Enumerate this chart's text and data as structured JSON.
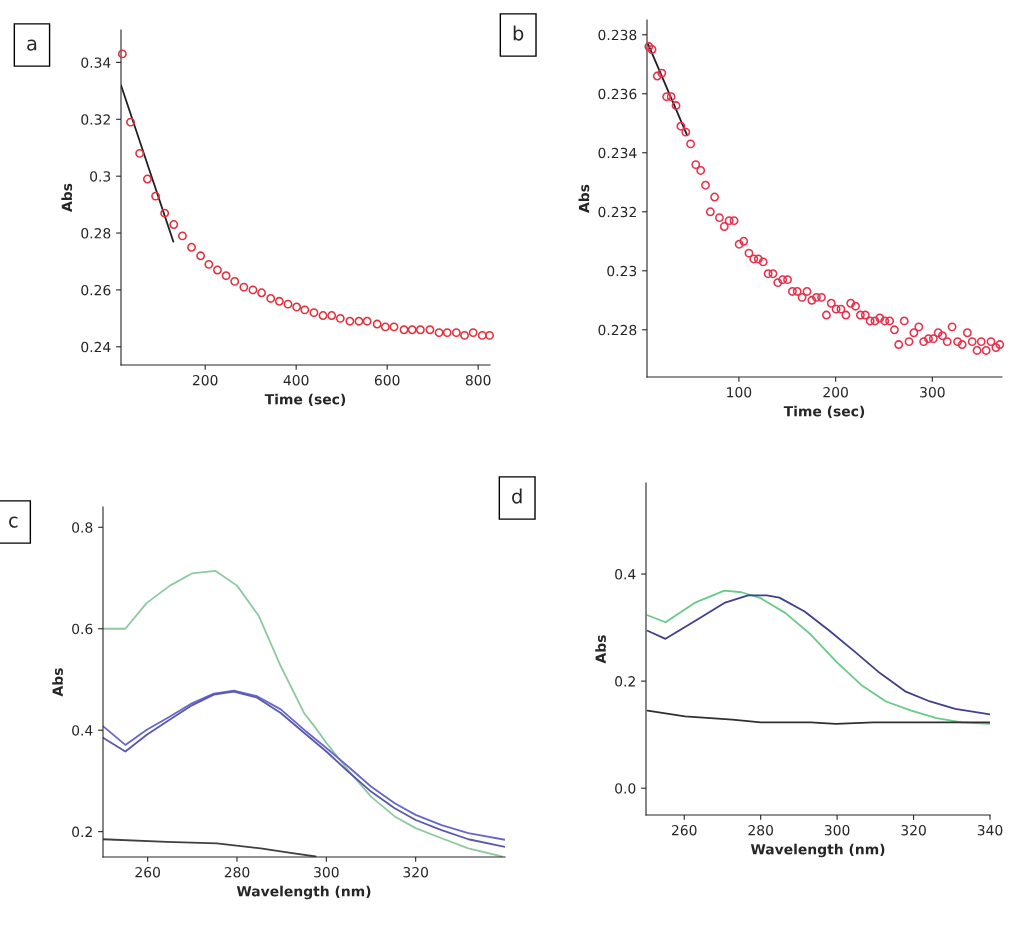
{
  "chart_data": [
    {
      "type": "scatter",
      "xlabel": "Time (sec)",
      "ylabel": "Abs",
      "annotations": [
        "a"
      ],
      "xlim": [
        15,
        826
      ],
      "ylim": [
        0.2336,
        0.3514
      ],
      "xticks": [
        200,
        400,
        600,
        800
      ],
      "yticks": [
        0.24,
        0.26,
        0.28,
        0.3,
        0.32,
        0.34
      ],
      "series": [
        {
          "type": "scatter",
          "marker": "circle",
          "color": "#e0303a",
          "x": [
            18,
            36,
            56,
            73,
            91,
            111,
            131,
            150,
            170,
            190,
            208,
            227,
            246,
            265,
            285,
            305,
            324,
            344,
            363,
            382,
            401,
            419,
            439,
            459,
            478,
            497,
            518,
            538,
            556,
            578,
            596,
            615,
            637,
            655,
            673,
            694,
            714,
            732,
            752,
            770,
            789,
            809,
            825
          ],
          "values": [
            0.343,
            0.319,
            0.308,
            0.299,
            0.293,
            0.287,
            0.283,
            0.279,
            0.275,
            0.272,
            0.269,
            0.267,
            0.265,
            0.263,
            0.261,
            0.26,
            0.259,
            0.257,
            0.256,
            0.255,
            0.254,
            0.253,
            0.252,
            0.251,
            0.251,
            0.25,
            0.249,
            0.249,
            0.249,
            0.248,
            0.247,
            0.247,
            0.246,
            0.246,
            0.246,
            0.246,
            0.245,
            0.245,
            0.245,
            0.244,
            0.245,
            0.244,
            0.244
          ]
        },
        {
          "type": "line",
          "color": "#202020",
          "x": [
            15,
            130
          ],
          "values": [
            0.332,
            0.277
          ]
        }
      ]
    },
    {
      "type": "scatter",
      "xlabel": "Time (sec)",
      "ylabel": "Abs",
      "annotations": [
        "b"
      ],
      "xlim": [
        5,
        372
      ],
      "ylim": [
        0.2264,
        0.2385
      ],
      "xticks": [
        100,
        200,
        300
      ],
      "yticks": [
        0.228,
        0.23,
        0.232,
        0.234,
        0.236,
        0.238
      ],
      "series": [
        {
          "type": "scatter",
          "marker": "circle",
          "color": "#e8304a",
          "x": [
            6.9,
            10.2,
            15.6,
            20.3,
            25.3,
            30.0,
            35.0,
            40.0,
            45.1,
            50.1,
            55.4,
            60.5,
            65.5,
            70.5,
            74.9,
            79.9,
            84.9,
            89.9,
            95.0,
            100.3,
            105.0,
            110.4,
            115.4,
            120.1,
            125.1,
            130.2,
            135.2,
            140.2,
            145.2,
            150.3,
            155.3,
            160.3,
            165.3,
            170.4,
            175.4,
            180.1,
            185.4,
            190.5,
            195.5,
            200.5,
            205.5,
            210.6,
            215.6,
            220.6,
            225.6,
            230.7,
            235.7,
            240.7,
            245.7,
            250.8,
            255.8,
            260.8,
            265.2,
            270.9,
            275.9,
            280.9,
            286.0,
            291.0,
            296.0,
            301.0,
            306.0,
            310.4,
            315.4,
            320.4,
            326.1,
            330.8,
            336.2,
            341.2,
            346.2,
            350.6,
            355.6,
            360.6,
            365.7,
            369.7
          ],
          "values": [
            0.2376,
            0.2375,
            0.2366,
            0.2367,
            0.2359,
            0.2359,
            0.2356,
            0.2349,
            0.2347,
            0.2343,
            0.2336,
            0.2334,
            0.2329,
            0.232,
            0.2325,
            0.2318,
            0.2315,
            0.2317,
            0.2317,
            0.2309,
            0.231,
            0.2306,
            0.2304,
            0.2304,
            0.2303,
            0.2299,
            0.2299,
            0.2296,
            0.2297,
            0.2297,
            0.2293,
            0.2293,
            0.2291,
            0.2293,
            0.229,
            0.2291,
            0.2291,
            0.2285,
            0.2289,
            0.2287,
            0.2287,
            0.2285,
            0.2289,
            0.2288,
            0.2285,
            0.2285,
            0.2283,
            0.2283,
            0.2284,
            0.2283,
            0.2283,
            0.228,
            0.2275,
            0.2283,
            0.2276,
            0.2279,
            0.2281,
            0.2276,
            0.2277,
            0.2277,
            0.2279,
            0.2278,
            0.2276,
            0.2281,
            0.2276,
            0.2275,
            0.2279,
            0.2276,
            0.2273,
            0.2276,
            0.2273,
            0.2276,
            0.2274,
            0.2275
          ]
        },
        {
          "type": "line",
          "color": "#202020",
          "x": [
            5.9,
            46.4
          ],
          "values": [
            0.2377,
            0.2346
          ]
        }
      ]
    },
    {
      "type": "line",
      "xlabel": "Wavelength (nm)",
      "ylabel": "Abs",
      "annotations": [
        "c"
      ],
      "xlim": [
        250,
        340
      ],
      "ylim": [
        0.15,
        0.84
      ],
      "xticks": [
        260,
        280,
        300,
        320
      ],
      "yticks": [
        0.2,
        0.4,
        0.6,
        0.8
      ],
      "series": [
        {
          "color": "#8ec9a0",
          "x": [
            250,
            255,
            259.8,
            265,
            269.9,
            275.2,
            280,
            284.9,
            289.8,
            295,
            297.3,
            300,
            304.8,
            310,
            315.3,
            320,
            325.8,
            331.8,
            339.3
          ],
          "values": [
            0.6,
            0.6,
            0.651,
            0.685,
            0.709,
            0.714,
            0.685,
            0.625,
            0.526,
            0.434,
            0.408,
            0.375,
            0.322,
            0.269,
            0.23,
            0.207,
            0.187,
            0.167,
            0.151
          ]
        },
        {
          "color": "#6868c8",
          "x": [
            250,
            255,
            259.8,
            265,
            269.9,
            274.8,
            279.3,
            284.5,
            289.8,
            295,
            300,
            304.8,
            310,
            315.3,
            320,
            325.8,
            331.8,
            340
          ],
          "values": [
            0.408,
            0.371,
            0.401,
            0.427,
            0.453,
            0.472,
            0.478,
            0.467,
            0.441,
            0.401,
            0.365,
            0.329,
            0.289,
            0.256,
            0.233,
            0.213,
            0.197,
            0.184
          ]
        },
        {
          "color": "#5858b0",
          "x": [
            250,
            255,
            259.8,
            265,
            269.9,
            274.8,
            279.3,
            284.5,
            289.8,
            295,
            300,
            304.8,
            310,
            315.3,
            320,
            325.8,
            331.8,
            340
          ],
          "values": [
            0.385,
            0.358,
            0.391,
            0.421,
            0.449,
            0.47,
            0.476,
            0.464,
            0.434,
            0.395,
            0.358,
            0.319,
            0.279,
            0.246,
            0.223,
            0.203,
            0.185,
            0.17
          ]
        },
        {
          "color": "#404040",
          "x": [
            250,
            264.3,
            275.5,
            285.3,
            292,
            297.6
          ],
          "values": [
            0.185,
            0.18,
            0.177,
            0.167,
            0.158,
            0.151
          ]
        }
      ]
    },
    {
      "type": "line",
      "xlabel": "Wavelength (nm)",
      "ylabel": "Abs",
      "annotations": [
        "d"
      ],
      "xlim": [
        250,
        340
      ],
      "ylim": [
        -0.05,
        0.57
      ],
      "xticks": [
        260,
        280,
        300,
        320,
        340
      ],
      "yticks": [
        {
          "value": 0,
          "label": "0.0"
        },
        0.2,
        0.4
      ],
      "series": [
        {
          "color": "#66cc88",
          "x": [
            250.4,
            255.1,
            262.7,
            270.5,
            275,
            280,
            286.5,
            293.1,
            299.7,
            306.3,
            312.8,
            319.4,
            326,
            332.6,
            340
          ],
          "values": [
            0.323,
            0.31,
            0.346,
            0.369,
            0.366,
            0.355,
            0.327,
            0.287,
            0.237,
            0.193,
            0.162,
            0.145,
            0.131,
            0.123,
            0.12
          ]
        },
        {
          "color": "#40408c",
          "x": [
            250.4,
            255.1,
            262.7,
            270.5,
            276.7,
            281.6,
            284.9,
            291.5,
            298,
            304.6,
            311.2,
            317.8,
            324.3,
            330.9,
            340
          ],
          "values": [
            0.294,
            0.279,
            0.312,
            0.346,
            0.36,
            0.36,
            0.356,
            0.33,
            0.294,
            0.255,
            0.215,
            0.181,
            0.162,
            0.148,
            0.138
          ]
        },
        {
          "color": "#303030",
          "x": [
            250.4,
            260.2,
            272.6,
            280,
            293.1,
            299.7,
            309.5,
            340
          ],
          "values": [
            0.145,
            0.134,
            0.128,
            0.123,
            0.123,
            0.12,
            0.123,
            0.123
          ]
        }
      ]
    }
  ]
}
